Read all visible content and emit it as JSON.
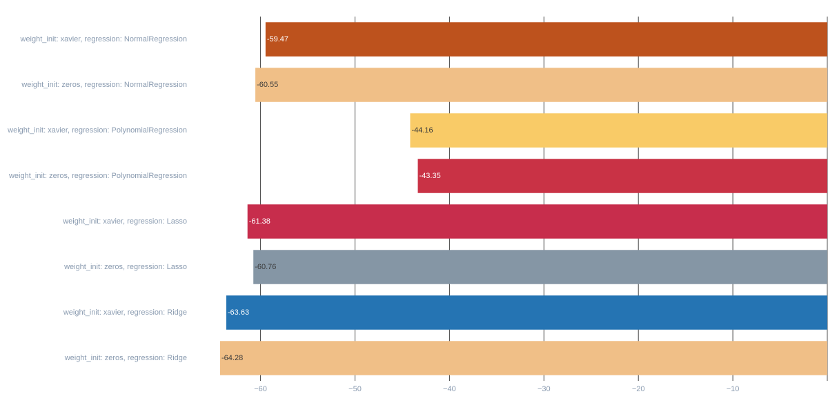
{
  "chart_data": {
    "type": "bar",
    "orientation": "horizontal",
    "categories": [
      "weight_init: xavier, regression: NormalRegression",
      "weight_init: zeros, regression: NormalRegression",
      "weight_init: xavier, regression: PolynomialRegression",
      "weight_init: zeros, regression: PolynomialRegression",
      "weight_init: xavier, regression: Lasso",
      "weight_init: zeros, regression: Lasso",
      "weight_init: xavier, regression: Ridge",
      "weight_init: zeros, regression: Ridge"
    ],
    "values": [
      -59.47,
      -60.55,
      -44.16,
      -43.35,
      -61.38,
      -60.76,
      -63.63,
      -64.28
    ],
    "value_labels": [
      "-59.47",
      "-60.55",
      "-44.16",
      "-43.35",
      "-61.38",
      "-60.76",
      "-63.63",
      "-64.28"
    ],
    "colors": [
      "#bd521d",
      "#f0bf87",
      "#f9cb67",
      "#c93245",
      "#c72d4c",
      "#8596a5",
      "#2574b3",
      "#f0bf87"
    ],
    "label_colors": [
      "#ffffff",
      "#3a3a3a",
      "#3a3a3a",
      "#ffffff",
      "#ffffff",
      "#3a3a3a",
      "#ffffff",
      "#3a3a3a"
    ],
    "x_ticks": [
      -60,
      -50,
      -40,
      -30,
      -20,
      -10
    ],
    "x_tick_labels": [
      "−60",
      "−50",
      "−40",
      "−30",
      "−20",
      "−10"
    ],
    "xlim": [
      -64.28,
      0
    ],
    "grid": true,
    "title": "",
    "xlabel": "",
    "ylabel": ""
  }
}
